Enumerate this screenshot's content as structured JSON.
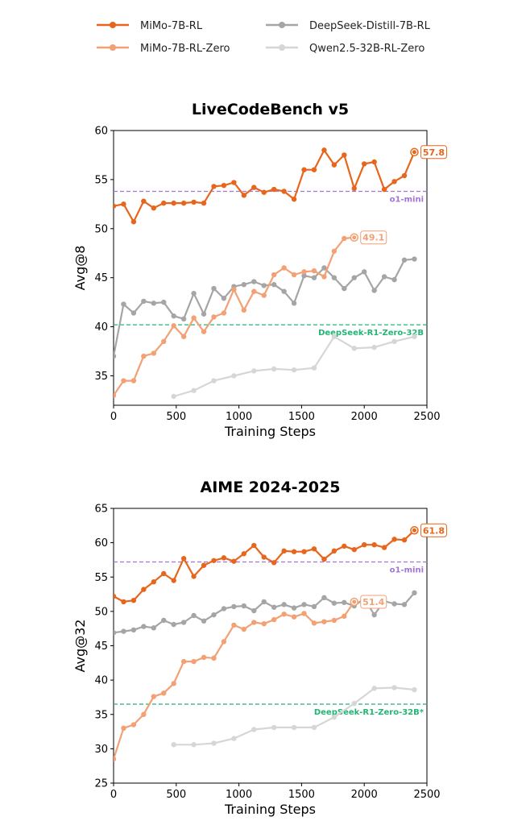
{
  "legend": [
    {
      "name": "MiMo-7B-RL",
      "color": "#e8651c"
    },
    {
      "name": "DeepSeek-Distill-7B-RL",
      "color": "#a5a5a5"
    },
    {
      "name": "MiMo-7B-RL-Zero",
      "color": "#f2a074"
    },
    {
      "name": "Qwen2.5-32B-RL-Zero",
      "color": "#d6d6d6"
    }
  ],
  "chart_data": [
    {
      "type": "line",
      "title": "LiveCodeBench v5",
      "xlabel": "Training Steps",
      "ylabel": "Avg@8",
      "xlim": [
        0,
        2500
      ],
      "ylim": [
        32,
        60
      ],
      "xticks": [
        0,
        500,
        1000,
        1500,
        2000,
        2500
      ],
      "yticks": [
        35,
        40,
        45,
        50,
        55,
        60
      ],
      "grid": false,
      "series": [
        {
          "name": "MiMo-7B-RL",
          "color": "#e8651c",
          "x": [
            0,
            80,
            160,
            240,
            320,
            400,
            480,
            560,
            640,
            720,
            800,
            880,
            960,
            1040,
            1120,
            1200,
            1280,
            1360,
            1440,
            1520,
            1600,
            1680,
            1760,
            1840,
            1920,
            2000,
            2080,
            2160,
            2240,
            2320,
            2400
          ],
          "y": [
            52.3,
            52.5,
            50.7,
            52.8,
            52.1,
            52.6,
            52.6,
            52.6,
            52.7,
            52.6,
            54.3,
            54.4,
            54.7,
            53.4,
            54.2,
            53.7,
            54.0,
            53.8,
            53.0,
            56.0,
            56.0,
            58.0,
            56.5,
            57.5,
            54.1,
            56.6,
            56.8,
            54.0,
            54.8,
            55.4,
            57.8
          ],
          "end_label": "57.8"
        },
        {
          "name": "MiMo-7B-RL-Zero",
          "color": "#f2a074",
          "x": [
            0,
            80,
            160,
            240,
            320,
            400,
            480,
            560,
            640,
            720,
            800,
            880,
            960,
            1040,
            1120,
            1200,
            1280,
            1360,
            1440,
            1520,
            1600,
            1680,
            1760,
            1840,
            1920
          ],
          "y": [
            33.0,
            34.5,
            34.5,
            37.0,
            37.3,
            38.5,
            40.1,
            39.0,
            40.9,
            39.5,
            41.0,
            41.4,
            43.8,
            41.7,
            43.6,
            43.2,
            45.3,
            46.0,
            45.3,
            45.6,
            45.7,
            45.1,
            47.7,
            49.0,
            49.1
          ],
          "end_label": "49.1"
        },
        {
          "name": "DeepSeek-Distill-7B-RL",
          "color": "#a5a5a5",
          "x": [
            0,
            80,
            160,
            240,
            320,
            400,
            480,
            560,
            640,
            720,
            800,
            880,
            960,
            1040,
            1120,
            1200,
            1280,
            1360,
            1440,
            1520,
            1600,
            1680,
            1760,
            1840,
            1920,
            2000,
            2080,
            2160,
            2240,
            2320,
            2400
          ],
          "y": [
            37.0,
            42.3,
            41.4,
            42.6,
            42.4,
            42.5,
            41.1,
            40.8,
            43.4,
            41.3,
            43.9,
            42.9,
            44.1,
            44.3,
            44.6,
            44.2,
            44.3,
            43.6,
            42.4,
            45.2,
            45.0,
            46.0,
            45.0,
            43.9,
            45.0,
            45.6,
            43.7,
            45.1,
            44.8,
            46.8,
            46.9
          ]
        },
        {
          "name": "Qwen2.5-32B-RL-Zero",
          "color": "#d6d6d6",
          "x": [
            480,
            640,
            800,
            960,
            1120,
            1280,
            1440,
            1600,
            1760,
            1920,
            2080,
            2240,
            2400
          ],
          "y": [
            32.9,
            33.5,
            34.5,
            35.0,
            35.5,
            35.7,
            35.6,
            35.8,
            39.0,
            37.8,
            37.9,
            38.5,
            39.0
          ]
        }
      ],
      "reference_lines": [
        {
          "label": "o1-mini",
          "y": 53.8,
          "color": "#a374d8"
        },
        {
          "label": "DeepSeek-R1-Zero-32B",
          "y": 40.2,
          "color": "#22b573"
        }
      ]
    },
    {
      "type": "line",
      "title": "AIME 2024-2025",
      "xlabel": "Training Steps",
      "ylabel": "Avg@32",
      "xlim": [
        0,
        2500
      ],
      "ylim": [
        25,
        65
      ],
      "xticks": [
        0,
        500,
        1000,
        1500,
        2000,
        2500
      ],
      "yticks": [
        25,
        30,
        35,
        40,
        45,
        50,
        55,
        60,
        65
      ],
      "grid": false,
      "series": [
        {
          "name": "MiMo-7B-RL",
          "color": "#e8651c",
          "x": [
            0,
            80,
            160,
            240,
            320,
            400,
            480,
            560,
            640,
            720,
            800,
            880,
            960,
            1040,
            1120,
            1200,
            1280,
            1360,
            1440,
            1520,
            1600,
            1680,
            1760,
            1840,
            1920,
            2000,
            2080,
            2160,
            2240,
            2320,
            2400
          ],
          "y": [
            52.2,
            51.4,
            51.6,
            53.2,
            54.3,
            55.5,
            54.5,
            57.7,
            55.1,
            56.7,
            57.4,
            57.8,
            57.3,
            58.4,
            59.6,
            57.9,
            57.1,
            58.8,
            58.7,
            58.7,
            59.1,
            57.6,
            58.8,
            59.5,
            59.0,
            59.7,
            59.7,
            59.3,
            60.5,
            60.4,
            61.8
          ],
          "end_label": "61.8"
        },
        {
          "name": "MiMo-7B-RL-Zero",
          "color": "#f2a074",
          "x": [
            0,
            80,
            160,
            240,
            320,
            400,
            480,
            560,
            640,
            720,
            800,
            880,
            960,
            1040,
            1120,
            1200,
            1280,
            1360,
            1440,
            1520,
            1600,
            1680,
            1760,
            1840,
            1920
          ],
          "y": [
            28.5,
            33.0,
            33.5,
            35.0,
            37.6,
            38.1,
            39.5,
            42.7,
            42.7,
            43.3,
            43.2,
            45.6,
            48.0,
            47.4,
            48.4,
            48.2,
            48.8,
            49.6,
            49.2,
            49.7,
            48.3,
            48.5,
            48.7,
            49.3,
            51.4
          ],
          "end_label": "51.4"
        },
        {
          "name": "DeepSeek-Distill-7B-RL",
          "color": "#a5a5a5",
          "x": [
            0,
            80,
            160,
            240,
            320,
            400,
            480,
            560,
            640,
            720,
            800,
            880,
            960,
            1040,
            1120,
            1200,
            1280,
            1360,
            1440,
            1520,
            1600,
            1680,
            1760,
            1840,
            1920,
            2000,
            2080,
            2160,
            2240,
            2320,
            2400
          ],
          "y": [
            46.9,
            47.1,
            47.3,
            47.8,
            47.6,
            48.7,
            48.1,
            48.4,
            49.4,
            48.6,
            49.5,
            50.4,
            50.7,
            50.8,
            50.1,
            51.4,
            50.6,
            51.0,
            50.5,
            51.0,
            50.7,
            52.0,
            51.2,
            51.3,
            50.8,
            51.9,
            49.5,
            51.5,
            51.1,
            51.0,
            52.7
          ]
        },
        {
          "name": "Qwen2.5-32B-RL-Zero",
          "color": "#d6d6d6",
          "x": [
            480,
            640,
            800,
            960,
            1120,
            1280,
            1440,
            1600,
            1760,
            1920,
            2080,
            2240,
            2400
          ],
          "y": [
            30.6,
            30.6,
            30.8,
            31.5,
            32.8,
            33.1,
            33.1,
            33.1,
            34.6,
            36.6,
            38.8,
            38.9,
            38.6
          ]
        }
      ],
      "reference_lines": [
        {
          "label": "o1-mini",
          "y": 57.2,
          "color": "#a374d8"
        },
        {
          "label": "DeepSeek-R1-Zero-32B*",
          "y": 36.5,
          "color": "#22b573"
        }
      ]
    }
  ]
}
